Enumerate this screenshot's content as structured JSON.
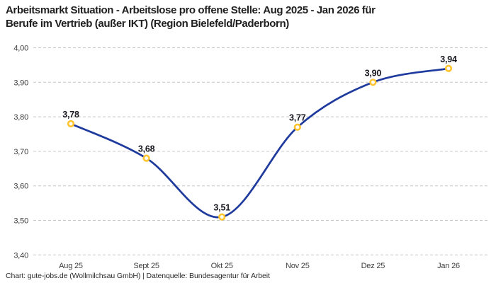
{
  "header": {
    "title_line1": "Arbeitsmarkt Situation - Arbeitslose pro offene Stelle: Aug 2025 - Jan 2026 für",
    "title_line2": "Berufe im Vertrieb (außer IKT) (Region Bielefeld/Paderborn)"
  },
  "footer": {
    "text": "Chart: gute-jobs.de (Wollmilchsau GmbH) | Datenquelle: Bundesagentur für Arbeit"
  },
  "chart_data": {
    "type": "line",
    "title": "Arbeitsmarkt Situation - Arbeitslose pro offene Stelle: Aug 2025 - Jan 2026 für Berufe im Vertrieb (außer IKT) (Region Bielefeld/Paderborn)",
    "categories": [
      "Aug 25",
      "Sept 25",
      "Okt 25",
      "Nov 25",
      "Dez 25",
      "Jan 26"
    ],
    "values": [
      3.78,
      3.68,
      3.51,
      3.77,
      3.9,
      3.94
    ],
    "point_labels": [
      "3,78",
      "3,68",
      "3,51",
      "3,77",
      "3,90",
      "3,94"
    ],
    "xlabel": "",
    "ylabel": "",
    "ylim": [
      3.4,
      4.0
    ],
    "ytick_step": 0.1,
    "ytick_labels": [
      "3,40",
      "3,50",
      "3,60",
      "3,70",
      "3,80",
      "3,90",
      "4,00"
    ],
    "grid": "horizontal-dashed",
    "legend": "none",
    "line_style": "smooth-spline",
    "colors": {
      "line": "#1e3a9d",
      "marker_stroke": "#ffc42e",
      "marker_fill": "#ffffff",
      "grid": "#c6c6c6",
      "label": "#17171f",
      "tick": "#3d3d3d",
      "title": "#1f1f1f",
      "background": "#ffffff"
    }
  }
}
